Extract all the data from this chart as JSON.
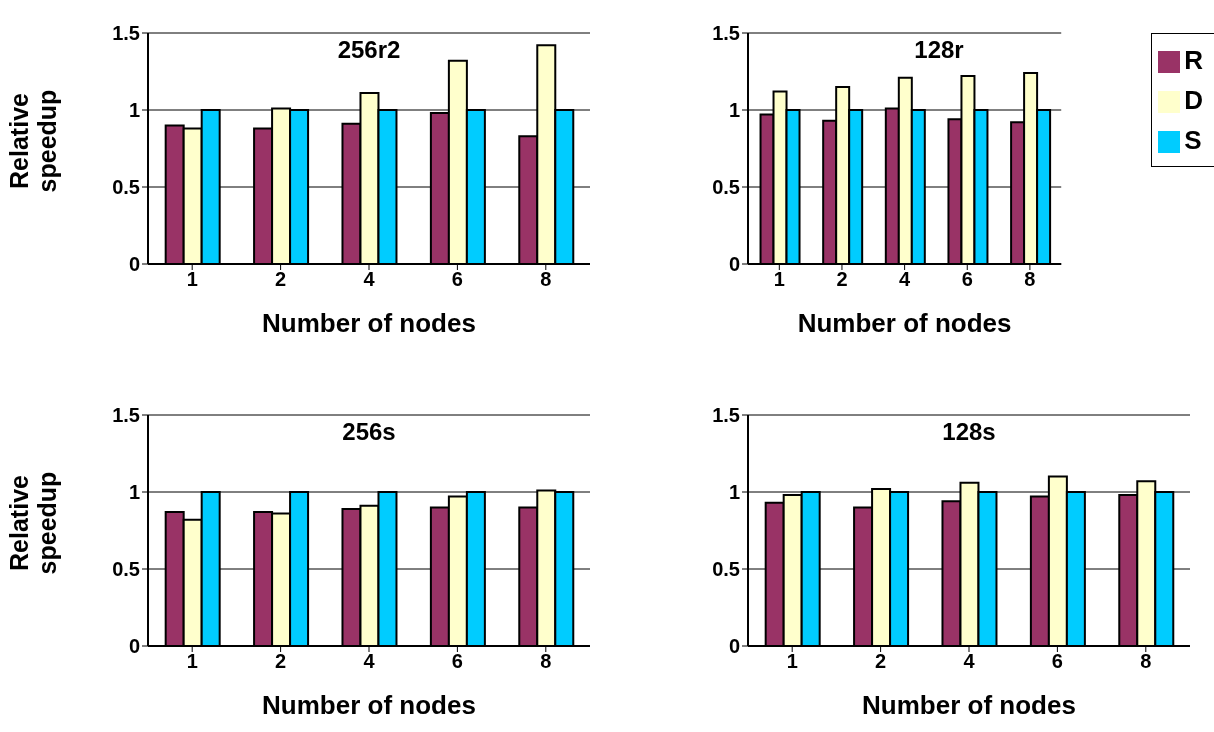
{
  "chart_data": [
    {
      "type": "bar",
      "title": "256r2",
      "xlabel": "Number of nodes",
      "ylabel": "Relative speedup",
      "categories": [
        "1",
        "2",
        "4",
        "6",
        "8"
      ],
      "ylim": [
        0,
        1.5
      ],
      "yticks": [
        0,
        0.5,
        1,
        1.5
      ],
      "grid": "y",
      "legend": false,
      "series": [
        {
          "color": "#993366",
          "values": [
            0.9,
            0.88,
            0.91,
            0.98,
            0.83
          ]
        },
        {
          "color": "#ffffcc",
          "values": [
            0.88,
            1.01,
            1.11,
            1.32,
            1.42
          ]
        },
        {
          "color": "#00ccff",
          "values": [
            1,
            1,
            1,
            1,
            1
          ]
        }
      ]
    },
    {
      "type": "bar",
      "title": "128r",
      "xlabel": "Number of nodes",
      "categories": [
        "1",
        "2",
        "4",
        "6",
        "8"
      ],
      "ylim": [
        0,
        1.5
      ],
      "yticks": [
        0,
        0.5,
        1,
        1.5
      ],
      "grid": "y",
      "legend": "right",
      "series": [
        {
          "name": "R",
          "color": "#993366",
          "values": [
            0.97,
            0.93,
            1.01,
            0.94,
            0.92
          ]
        },
        {
          "name": "D",
          "color": "#ffffcc",
          "values": [
            1.12,
            1.15,
            1.21,
            1.22,
            1.24
          ]
        },
        {
          "name": "S",
          "color": "#00ccff",
          "values": [
            1,
            1,
            1,
            1,
            1
          ]
        }
      ]
    },
    {
      "type": "bar",
      "title": "256s",
      "xlabel": "Number of nodes",
      "ylabel": "Relative speedup",
      "categories": [
        "1",
        "2",
        "4",
        "6",
        "8"
      ],
      "ylim": [
        0,
        1.5
      ],
      "yticks": [
        0,
        0.5,
        1,
        1.5
      ],
      "grid": "y",
      "legend": false,
      "series": [
        {
          "color": "#993366",
          "values": [
            0.87,
            0.87,
            0.89,
            0.9,
            0.9
          ]
        },
        {
          "color": "#ffffcc",
          "values": [
            0.82,
            0.86,
            0.91,
            0.97,
            1.01
          ]
        },
        {
          "color": "#00ccff",
          "values": [
            1,
            1,
            1,
            1,
            1
          ]
        }
      ]
    },
    {
      "type": "bar",
      "title": "128s",
      "xlabel": "Number of nodes",
      "categories": [
        "1",
        "2",
        "4",
        "6",
        "8"
      ],
      "ylim": [
        0,
        1.5
      ],
      "yticks": [
        0,
        0.5,
        1,
        1.5
      ],
      "grid": "y",
      "legend": false,
      "series": [
        {
          "color": "#993366",
          "values": [
            0.93,
            0.9,
            0.94,
            0.97,
            0.98
          ]
        },
        {
          "color": "#ffffcc",
          "values": [
            0.98,
            1.02,
            1.06,
            1.1,
            1.07
          ]
        },
        {
          "color": "#00ccff",
          "values": [
            1,
            1,
            1,
            1,
            1
          ]
        }
      ]
    }
  ]
}
